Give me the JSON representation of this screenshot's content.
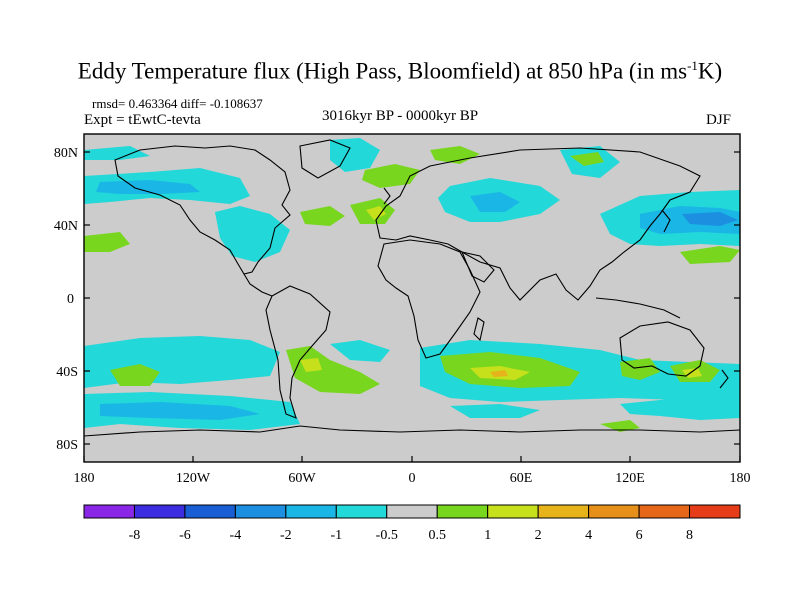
{
  "title": {
    "main": "Eddy Temperature flux (High Pass, Bloomfield) at 850 hPa (in ms",
    "sup": "-1",
    "end": "K)"
  },
  "stats": "rmsd= 0.463364 diff= -0.108637",
  "expt": "Expt = tEwtC-tevta",
  "period": "3016kyr BP - 0000kyr BP",
  "season": "DJF",
  "axes": {
    "x_ticks": [
      "180",
      "120W",
      "60W",
      "0",
      "60E",
      "120E",
      "180"
    ],
    "y_ticks": [
      "80N",
      "40N",
      "0",
      "40S",
      "80S"
    ]
  },
  "colorbar": {
    "colors": [
      "#8a26e6",
      "#3c2ee0",
      "#1a5ed6",
      "#1c8fe0",
      "#1ab6e6",
      "#22d8d8",
      "#cccccc",
      "#78d61e",
      "#c6e01c",
      "#e6b41a",
      "#e6901a",
      "#e6661a",
      "#e63c1a"
    ],
    "labels": [
      "-8",
      "-6",
      "-4",
      "-2",
      "-1",
      "-0.5",
      "0.5",
      "1",
      "2",
      "4",
      "6",
      "8"
    ]
  },
  "colors": {
    "background_field": "#cccccc",
    "neg_weak": "#22d8d8",
    "neg_mod": "#1ab6e6",
    "neg_strong": "#1c8fe0",
    "pos_weak": "#78d61e",
    "pos_mod": "#c6e01c",
    "pos_strong": "#e6b41a"
  }
}
